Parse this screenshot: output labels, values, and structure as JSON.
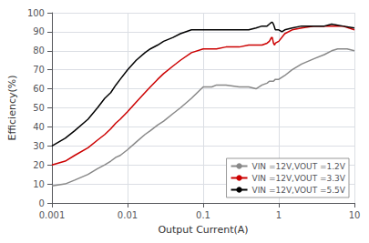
{
  "chart_data": {
    "type": "line",
    "xlabel": "Output Current(A)",
    "ylabel": "Efficiency(%)",
    "log": "x",
    "xlim": [
      0.001,
      10
    ],
    "ylim": [
      0,
      100
    ],
    "xticks": [
      0.001,
      0.01,
      0.1,
      1,
      10
    ],
    "yticks": [
      0,
      10,
      20,
      30,
      40,
      50,
      60,
      70,
      80,
      90,
      100
    ],
    "grid": true,
    "legend": "lower right",
    "series": [
      {
        "name": "VIN =12V,VOUT =1.2V",
        "color": "#888888",
        "x": [
          0.001,
          0.0015,
          0.002,
          0.003,
          0.004,
          0.005,
          0.006,
          0.007,
          0.008,
          0.01,
          0.013,
          0.017,
          0.02,
          0.025,
          0.03,
          0.04,
          0.05,
          0.07,
          0.1,
          0.13,
          0.15,
          0.2,
          0.3,
          0.4,
          0.5,
          0.6,
          0.7,
          0.75,
          0.8,
          0.85,
          0.9,
          1.0,
          1.2,
          1.5,
          2.0,
          3.0,
          4.0,
          5.0,
          6.0,
          7.0,
          8.0,
          10.0
        ],
        "values": [
          9,
          10,
          12,
          15,
          18,
          20,
          22,
          24,
          25,
          28,
          32,
          36,
          38,
          41,
          43,
          47,
          50,
          55,
          61,
          61,
          62,
          62,
          61,
          61,
          60,
          62,
          63,
          64,
          64,
          64,
          65,
          65,
          67,
          70,
          73,
          76,
          78,
          80,
          81,
          81,
          81,
          80
        ]
      },
      {
        "name": "VIN =12V,VOUT =3.3V",
        "color": "#cc0000",
        "x": [
          0.001,
          0.0015,
          0.002,
          0.003,
          0.004,
          0.005,
          0.006,
          0.007,
          0.008,
          0.01,
          0.013,
          0.017,
          0.02,
          0.025,
          0.03,
          0.04,
          0.05,
          0.07,
          0.1,
          0.13,
          0.15,
          0.2,
          0.3,
          0.4,
          0.5,
          0.6,
          0.7,
          0.75,
          0.8,
          0.82,
          0.85,
          0.88,
          0.9,
          1.0,
          1.2,
          1.5,
          2.0,
          3.0,
          4.0,
          5.0,
          7.0,
          10.0
        ],
        "values": [
          20,
          22,
          25,
          29,
          33,
          36,
          39,
          42,
          44,
          48,
          53,
          58,
          61,
          65,
          68,
          72,
          75,
          79,
          81,
          81,
          81,
          82,
          82,
          83,
          83,
          83,
          84,
          85,
          87,
          87,
          84,
          83,
          84,
          85,
          89,
          91,
          92,
          93,
          93,
          93,
          93,
          91
        ]
      },
      {
        "name": "VIN =12V,VOUT =5.5V",
        "color": "#000000",
        "x": [
          0.001,
          0.0015,
          0.002,
          0.003,
          0.004,
          0.005,
          0.006,
          0.007,
          0.008,
          0.01,
          0.013,
          0.017,
          0.02,
          0.025,
          0.03,
          0.04,
          0.05,
          0.07,
          0.1,
          0.13,
          0.15,
          0.2,
          0.3,
          0.4,
          0.5,
          0.6,
          0.7,
          0.75,
          0.8,
          0.82,
          0.85,
          0.9,
          1.0,
          1.1,
          1.2,
          1.5,
          2.0,
          3.0,
          4.0,
          5.0,
          7.0,
          10.0
        ],
        "values": [
          30,
          34,
          38,
          44,
          50,
          55,
          58,
          62,
          65,
          70,
          75,
          79,
          81,
          83,
          85,
          87,
          89,
          91,
          91,
          91,
          91,
          91,
          91,
          91,
          92,
          93,
          93,
          94,
          95,
          95,
          94,
          91,
          91,
          90,
          91,
          92,
          93,
          93,
          93,
          94,
          93,
          92
        ]
      }
    ]
  }
}
